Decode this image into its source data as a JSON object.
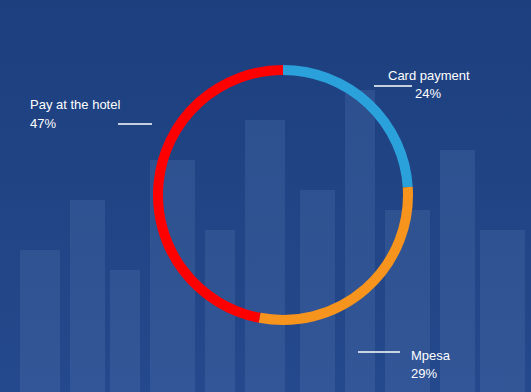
{
  "chart_data": {
    "type": "donut",
    "categories": [
      "Card payment",
      "Mpesa",
      "Pay at the hotel"
    ],
    "values": [
      24,
      29,
      47
    ],
    "value_labels": [
      "24%",
      "29%",
      "47%"
    ],
    "colors": [
      "#2ba1dc",
      "#f7941d",
      "#ff0000"
    ],
    "data_labels": true
  }
}
